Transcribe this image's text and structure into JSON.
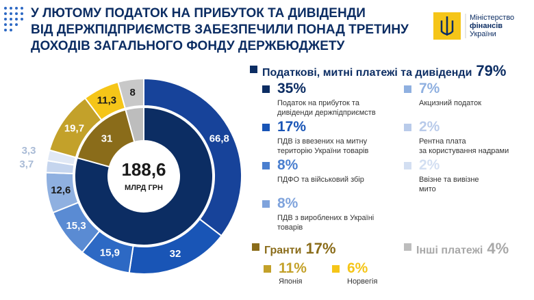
{
  "header": {
    "title": [
      "У ЛЮТОМУ ПОДАТОК НА ПРИБУТОК ТА ДИВІДЕНДИ",
      "ВІД ДЕРЖПІДПРИЄМСТВ ЗАБЕЗПЕЧИЛИ ПОНАД ТРЕТИНУ",
      "ДОХОДІВ ЗАГАЛЬНОГО ФОНДУ ДЕРЖБЮДЖЕТУ"
    ],
    "logo": [
      "Міністерство",
      "фінансів",
      "України"
    ]
  },
  "chart_data": {
    "type": "donut",
    "center": {
      "value": 188.6,
      "label": "188,6",
      "unit": "МЛРД ГРН"
    },
    "rings": [
      {
        "values": [
          149.6,
          31,
          8
        ],
        "value_labels": [
          null,
          "31",
          null
        ],
        "colors": [
          "#0c2d63",
          "#8a6c1a",
          "#bdbdbd"
        ]
      },
      {
        "values": [
          66.8,
          32,
          15.9,
          15.3,
          12.6,
          3.7,
          3.3,
          19.7,
          11.3,
          8
        ],
        "value_labels": [
          "66,8",
          "32",
          "15,9",
          "15,3",
          "12,6",
          "3,7",
          "3,3",
          "19,7",
          "11,3",
          "8"
        ],
        "colors": [
          "#17439a",
          "#1955b6",
          "#2d69c4",
          "#5a8bd3",
          "#8fb0e0",
          "#c5d5ee",
          "#e0e8f5",
          "#c3a12a",
          "#f5c518",
          "#c8c8c8"
        ]
      }
    ]
  },
  "legend": {
    "taxes": {
      "label": "Податкові, митні платежі та дивіденди",
      "share": "79%",
      "color": "#0c2d63"
    },
    "items": [
      {
        "share": "35%",
        "label": [
          "Податок на прибуток та",
          "дивіденди держпідприємств"
        ],
        "color": "#0c2d63"
      },
      {
        "share": "17%",
        "label": [
          "ПДВ із ввезених на митну",
          "територію України товарів"
        ],
        "color": "#1955b6"
      },
      {
        "share": "8%",
        "label": [
          "ПДФО та військовий збір"
        ],
        "color": "#4a7fcf"
      },
      {
        "share": "8%",
        "label": [
          "ПДВ з вироблених в Україні",
          "товарів"
        ],
        "color": "#7fa3dc"
      },
      {
        "share": "7%",
        "label": [
          "Акцизний податок"
        ],
        "color": "#8fb0e0"
      },
      {
        "share": "2%",
        "label": [
          "Рентна плата",
          "за користування надрами"
        ],
        "color": "#b9cbea"
      },
      {
        "share": "2%",
        "label": [
          "Ввізне та вивізне",
          "мито"
        ],
        "color": "#d3dff2"
      }
    ],
    "grants": {
      "label": "Гранти",
      "share": "17%",
      "color": "#8a6c1a"
    },
    "grant_items": [
      {
        "share": "11%",
        "label": "Японія",
        "color": "#c3a12a"
      },
      {
        "share": "6%",
        "label": "Норвегія",
        "color": "#f5c518"
      }
    ],
    "other": {
      "label": "Інші платежі",
      "share": "4%",
      "color": "#bdbdbd"
    }
  }
}
